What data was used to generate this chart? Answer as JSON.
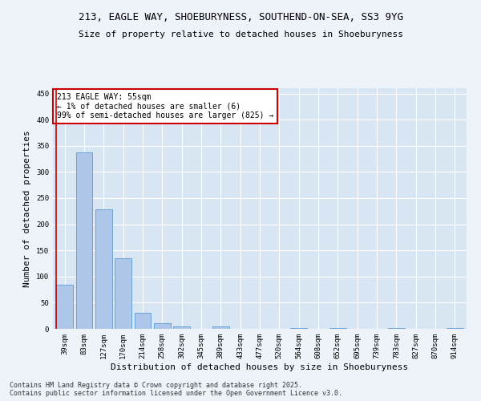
{
  "title_line1": "213, EAGLE WAY, SHOEBURYNESS, SOUTHEND-ON-SEA, SS3 9YG",
  "title_line2": "Size of property relative to detached houses in Shoeburyness",
  "xlabel": "Distribution of detached houses by size in Shoeburyness",
  "ylabel": "Number of detached properties",
  "categories": [
    "39sqm",
    "83sqm",
    "127sqm",
    "170sqm",
    "214sqm",
    "258sqm",
    "302sqm",
    "345sqm",
    "389sqm",
    "433sqm",
    "477sqm",
    "520sqm",
    "564sqm",
    "608sqm",
    "652sqm",
    "695sqm",
    "739sqm",
    "783sqm",
    "827sqm",
    "870sqm",
    "914sqm"
  ],
  "values": [
    85,
    337,
    228,
    135,
    30,
    10,
    5,
    0,
    5,
    0,
    0,
    0,
    2,
    0,
    2,
    0,
    0,
    2,
    0,
    0,
    2
  ],
  "bar_color": "#aec6e8",
  "bar_edge_color": "#5b9bd5",
  "annotation_box_color": "#ffffff",
  "annotation_border_color": "#cc0000",
  "annotation_text_line1": "213 EAGLE WAY: 55sqm",
  "annotation_text_line2": "← 1% of detached houses are smaller (6)",
  "annotation_text_line3": "99% of semi-detached houses are larger (825) →",
  "annotation_fontsize": 7,
  "title_fontsize": 9,
  "subtitle_fontsize": 8,
  "ylabel_fontsize": 8,
  "xlabel_fontsize": 8,
  "tick_fontsize": 6.5,
  "ylim": [
    0,
    460
  ],
  "yticks": [
    0,
    50,
    100,
    150,
    200,
    250,
    300,
    350,
    400,
    450
  ],
  "footer_line1": "Contains HM Land Registry data © Crown copyright and database right 2025.",
  "footer_line2": "Contains public sector information licensed under the Open Government Licence v3.0.",
  "footer_fontsize": 6,
  "background_color": "#eef2f9",
  "plot_background_color": "#d8e6f3",
  "grid_color": "#ffffff",
  "red_line_x": -0.5
}
